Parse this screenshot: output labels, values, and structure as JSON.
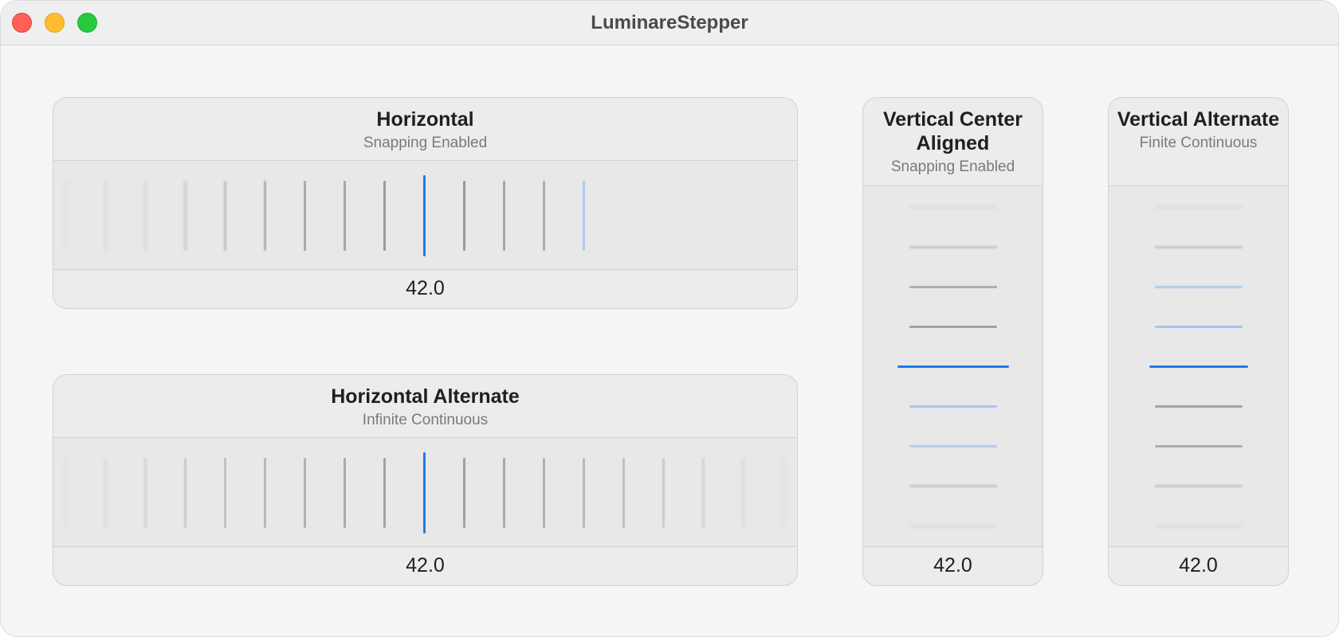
{
  "window": {
    "title": "LuminareStepper"
  },
  "colors": {
    "accent": "#1c7ced",
    "accent_light": "#a4c6f0",
    "tick": "#9a9a9a"
  },
  "panels": {
    "horizontal": {
      "title": "Horizontal",
      "subtitle": "Snapping Enabled",
      "value": "42.0"
    },
    "horizontal_alternate": {
      "title": "Horizontal Alternate",
      "subtitle": "Infinite Continuous",
      "value": "42.0"
    },
    "vertical_center": {
      "title": "Vertical Center Aligned",
      "subtitle": "Snapping Enabled",
      "value": "42.0"
    },
    "vertical_alternate": {
      "title": "Vertical Alternate",
      "subtitle": "Finite Continuous",
      "value": "42.0"
    }
  }
}
